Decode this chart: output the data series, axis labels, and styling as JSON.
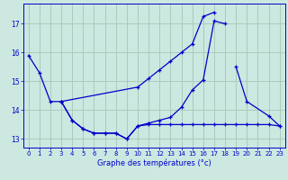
{
  "title": "Graphe des températures (°c)",
  "background_color": "#cce8e0",
  "grid_color": "#aaccbb",
  "line_color": "#0000cc",
  "xlim": [
    -0.5,
    23.5
  ],
  "ylim": [
    12.7,
    17.7
  ],
  "yticks": [
    13,
    14,
    15,
    16,
    17
  ],
  "xticks": [
    0,
    1,
    2,
    3,
    4,
    5,
    6,
    7,
    8,
    9,
    10,
    11,
    12,
    13,
    14,
    15,
    16,
    17,
    18,
    19,
    20,
    21,
    22,
    23
  ],
  "series": [
    {
      "x": [
        0,
        1,
        2,
        3,
        10,
        11,
        12,
        13,
        14,
        15,
        16,
        17
      ],
      "y": [
        15.9,
        15.3,
        14.3,
        14.3,
        14.8,
        15.1,
        15.4,
        15.7,
        16.0,
        16.3,
        17.25,
        17.4
      ]
    },
    {
      "x": [
        3,
        4,
        5,
        6,
        7,
        8,
        9,
        10,
        11,
        12,
        13,
        14,
        15,
        16,
        17,
        18
      ],
      "y": [
        14.3,
        13.65,
        13.35,
        13.2,
        13.2,
        13.2,
        13.0,
        13.45,
        13.55,
        13.65,
        13.75,
        14.1,
        14.7,
        15.05,
        17.1,
        17.0
      ]
    },
    {
      "x": [
        3,
        4,
        5,
        6,
        7,
        8,
        9,
        10,
        11,
        12,
        13,
        14,
        15,
        16,
        17,
        18,
        19,
        20,
        21,
        22,
        23
      ],
      "y": [
        14.3,
        13.65,
        13.35,
        13.2,
        13.2,
        13.2,
        13.0,
        13.45,
        13.5,
        13.5,
        13.5,
        13.5,
        13.5,
        13.5,
        13.5,
        13.5,
        13.5,
        13.5,
        13.5,
        13.5,
        13.45
      ]
    },
    {
      "x": [
        19,
        20,
        22,
        23
      ],
      "y": [
        15.5,
        14.3,
        13.8,
        13.45
      ]
    }
  ]
}
